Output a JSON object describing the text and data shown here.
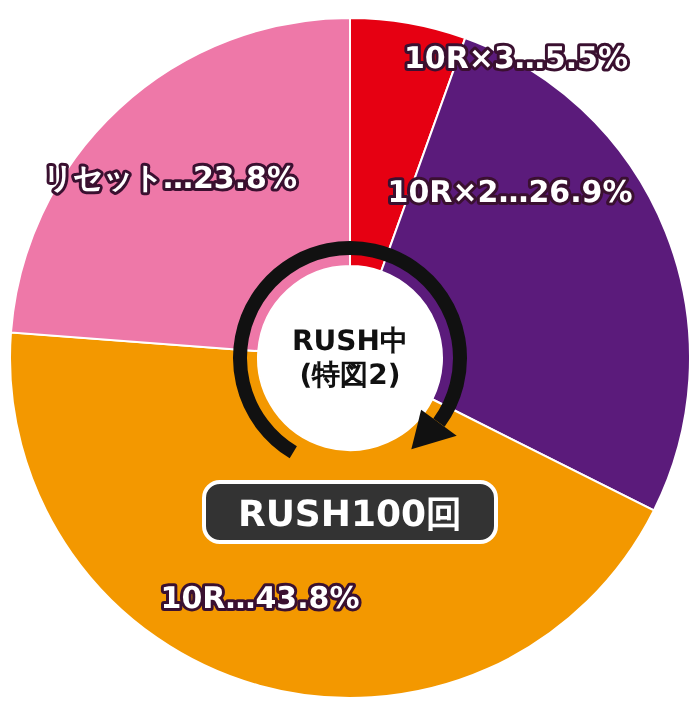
{
  "chart_data": {
    "type": "donut",
    "categories": [
      "10R×3",
      "10R×2",
      "10R",
      "リセット"
    ],
    "values": [
      5.5,
      26.9,
      43.8,
      23.8
    ],
    "value_labels": [
      "…5.5%",
      "…26.9%",
      "…43.8%",
      "…23.8%"
    ],
    "colors": [
      "#e60012",
      "#5b1b7b",
      "#f39800",
      "#ee78a8"
    ],
    "annotations": [
      "RUSH中\n(特図2)",
      "RUSH100回"
    ]
  }
}
